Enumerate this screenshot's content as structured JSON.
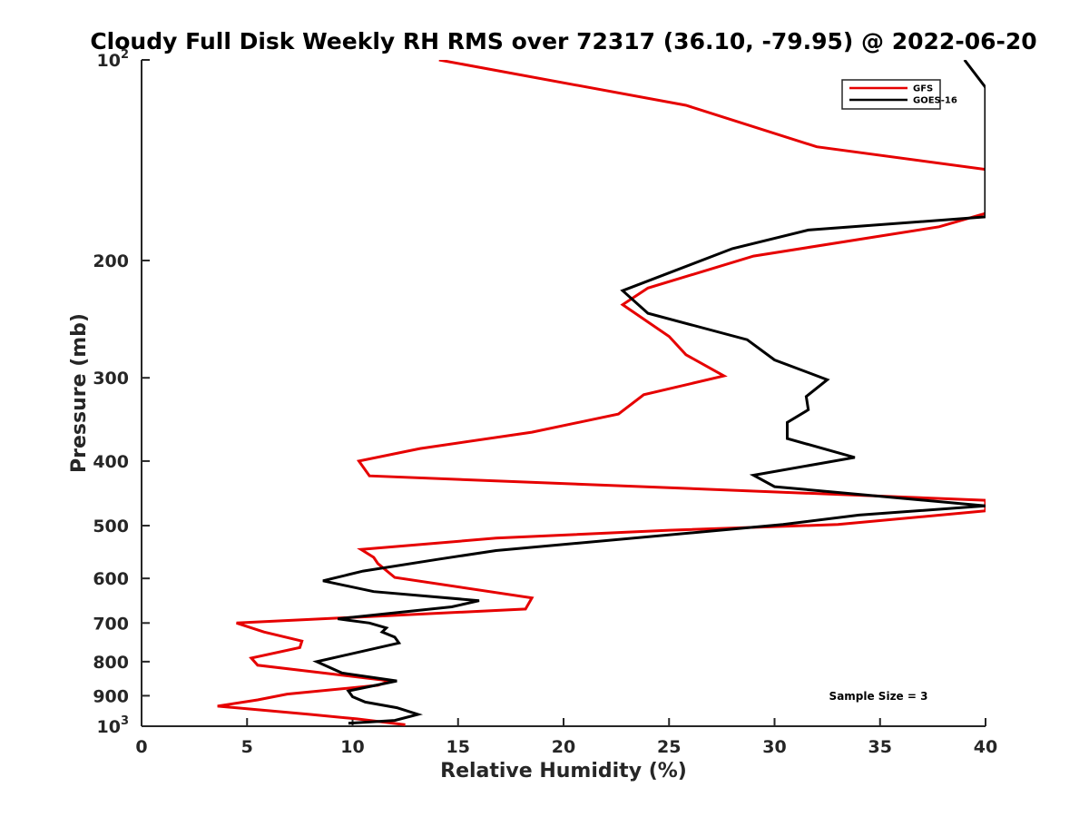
{
  "chart_data": {
    "type": "line",
    "title": "Cloudy Full Disk Weekly RH RMS over 72317 (36.10, -79.95) @ 2022-06-20",
    "xlabel": "Relative Humidity (%)",
    "ylabel": "Pressure (mb)",
    "xlim": [
      0,
      40
    ],
    "ylim": [
      100,
      1000
    ],
    "y_scale": "log",
    "y_reversed": true,
    "x_ticks": [
      "0",
      "5",
      "10",
      "15",
      "20",
      "25",
      "30",
      "35",
      "40"
    ],
    "y_ticks": [
      {
        "value": 100,
        "label": "10",
        "sup": "2"
      },
      {
        "value": 200,
        "label": "200",
        "sup": ""
      },
      {
        "value": 300,
        "label": "300",
        "sup": ""
      },
      {
        "value": 400,
        "label": "400",
        "sup": ""
      },
      {
        "value": 500,
        "label": "500",
        "sup": ""
      },
      {
        "value": 600,
        "label": "600",
        "sup": ""
      },
      {
        "value": 700,
        "label": "700",
        "sup": ""
      },
      {
        "value": 800,
        "label": "800",
        "sup": ""
      },
      {
        "value": 900,
        "label": "900",
        "sup": ""
      },
      {
        "value": 1000,
        "label": "10",
        "sup": "3"
      }
    ],
    "grid": false,
    "legend_position": "top-right",
    "annotation": "Sample Size = 3",
    "series": [
      {
        "name": "GFS",
        "color": "#e60000",
        "points": [
          [
            14.1,
            100
          ],
          [
            25.8,
            117
          ],
          [
            32.0,
            135
          ],
          [
            40.0,
            146
          ],
          [
            40.0,
            170
          ],
          [
            37.8,
            178
          ],
          [
            29.0,
            197
          ],
          [
            24.0,
            220
          ],
          [
            22.8,
            233
          ],
          [
            25.0,
            260
          ],
          [
            25.8,
            277
          ],
          [
            27.6,
            298
          ],
          [
            23.8,
            318
          ],
          [
            22.6,
            340
          ],
          [
            18.5,
            362
          ],
          [
            13.2,
            383
          ],
          [
            10.3,
            400
          ],
          [
            10.8,
            421
          ],
          [
            40.0,
            458
          ],
          [
            40.0,
            475
          ],
          [
            33.0,
            498
          ],
          [
            25.0,
            508
          ],
          [
            16.8,
            522
          ],
          [
            10.4,
            543
          ],
          [
            11.0,
            558
          ],
          [
            11.2,
            570
          ],
          [
            12.0,
            598
          ],
          [
            18.5,
            642
          ],
          [
            18.2,
            667
          ],
          [
            4.5,
            700
          ],
          [
            5.8,
            722
          ],
          [
            7.6,
            745
          ],
          [
            7.5,
            762
          ],
          [
            5.2,
            790
          ],
          [
            5.5,
            810
          ],
          [
            11.8,
            855
          ],
          [
            11.2,
            868
          ],
          [
            6.9,
            895
          ],
          [
            5.5,
            913
          ],
          [
            3.6,
            933
          ],
          [
            8.0,
            960
          ],
          [
            10.2,
            975
          ],
          [
            12.5,
            995
          ]
        ]
      },
      {
        "name": "GOES-16",
        "color": "#000000",
        "points": [
          [
            39.0,
            100
          ],
          [
            40.0,
            110
          ],
          [
            40.0,
            172
          ],
          [
            31.6,
            180
          ],
          [
            28.0,
            192
          ],
          [
            22.8,
            222
          ],
          [
            24.0,
            240
          ],
          [
            28.7,
            263
          ],
          [
            30.0,
            282
          ],
          [
            32.5,
            302
          ],
          [
            31.5,
            320
          ],
          [
            31.6,
            335
          ],
          [
            30.6,
            350
          ],
          [
            30.6,
            370
          ],
          [
            33.8,
            395
          ],
          [
            29.0,
            420
          ],
          [
            30.0,
            437
          ],
          [
            40.0,
            467
          ],
          [
            34.0,
            482
          ],
          [
            30.4,
            498
          ],
          [
            16.8,
            545
          ],
          [
            14.0,
            562
          ],
          [
            10.5,
            585
          ],
          [
            8.6,
            605
          ],
          [
            11.0,
            628
          ],
          [
            16.0,
            648
          ],
          [
            14.7,
            662
          ],
          [
            9.3,
            690
          ],
          [
            10.8,
            700
          ],
          [
            11.6,
            712
          ],
          [
            11.4,
            722
          ],
          [
            12.0,
            735
          ],
          [
            12.2,
            750
          ],
          [
            8.3,
            800
          ],
          [
            9.5,
            832
          ],
          [
            12.1,
            855
          ],
          [
            9.8,
            885
          ],
          [
            10.0,
            903
          ],
          [
            10.6,
            920
          ],
          [
            12.1,
            938
          ],
          [
            13.1,
            960
          ],
          [
            12.0,
            980
          ],
          [
            9.8,
            990
          ]
        ]
      }
    ]
  }
}
